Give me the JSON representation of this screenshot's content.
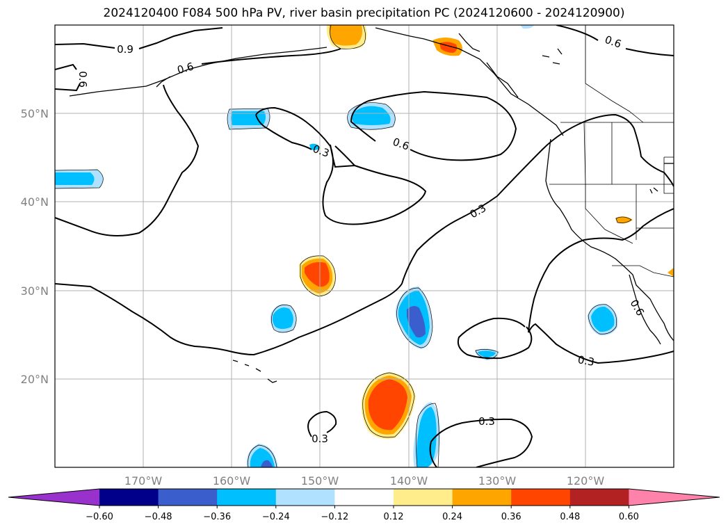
{
  "title": "2024120400 F084 500 hPa PV, river basin precipitation PC (2024120600 - 2024120900)",
  "map": {
    "lat_labels": [
      "50°N",
      "40°N",
      "30°N",
      "20°N"
    ],
    "lon_labels": [
      "170°W",
      "160°W",
      "150°W",
      "140°W",
      "130°W",
      "120°W"
    ],
    "contour_labels": [
      "0.9",
      "0.6",
      "0.6",
      "0.6",
      "0.3",
      "0.6",
      "0.3",
      "0.3",
      "0.3",
      "0.3",
      "0.6"
    ]
  },
  "colorbar": {
    "colors": [
      "#9932cc",
      "#00008b",
      "#3a5fcd",
      "#00bfff",
      "#b0e2ff",
      "#ffffff",
      "#ffec8b",
      "#ffa500",
      "#ff4500",
      "#b22222",
      "#ff82ab"
    ],
    "ticks": [
      "−0.60",
      "−0.48",
      "−0.36",
      "−0.24",
      "−0.12",
      "0.12",
      "0.24",
      "0.36",
      "0.48",
      "0.60"
    ]
  }
}
